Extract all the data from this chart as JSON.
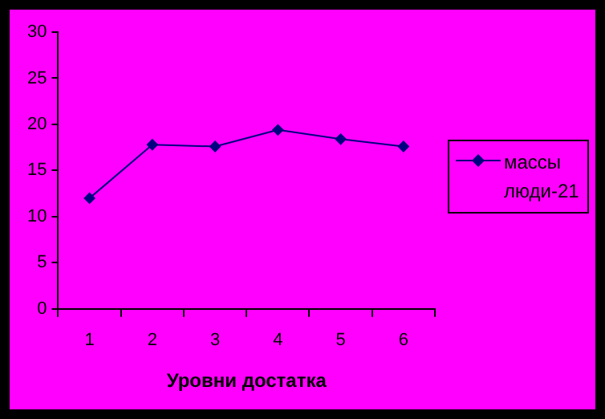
{
  "chart_data": {
    "type": "line",
    "xlabel": "Уровни достатка",
    "categories": [
      "1",
      "2",
      "3",
      "4",
      "5",
      "6"
    ],
    "series": [
      {
        "name": "массы люди-21",
        "color": "#000080",
        "values": [
          12,
          17.8,
          17.6,
          19.4,
          18.4,
          17.6
        ]
      }
    ],
    "ylim": [
      0,
      30
    ],
    "yticks": [
      0,
      5,
      10,
      15,
      20,
      25,
      30
    ],
    "grid": false,
    "legend": "right",
    "marker": "diamond",
    "line_style": "solid"
  }
}
